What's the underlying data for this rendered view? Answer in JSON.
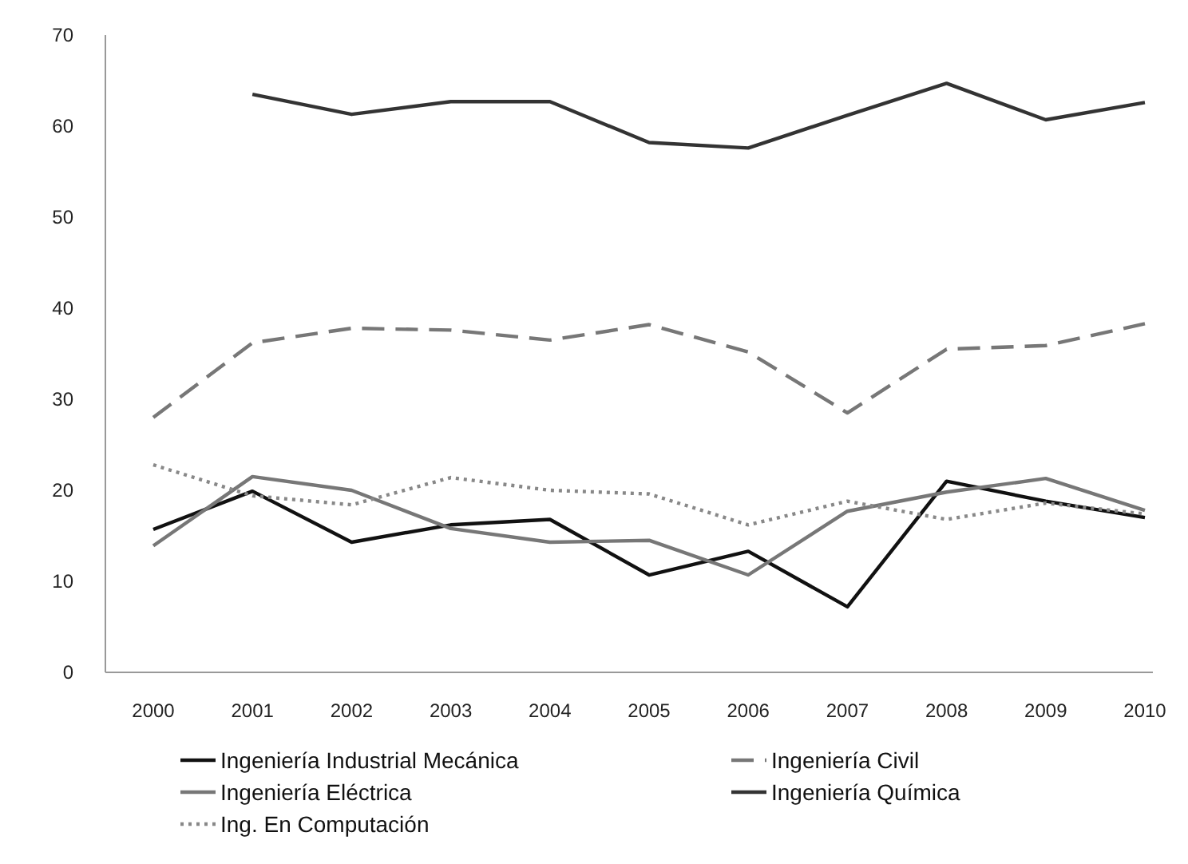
{
  "chart_data": {
    "type": "line",
    "categories": [
      "2000",
      "2001",
      "2002",
      "2003",
      "2004",
      "2005",
      "2006",
      "2007",
      "2008",
      "2009",
      "2010"
    ],
    "ylim": [
      0,
      70
    ],
    "yticks": [
      0,
      10,
      20,
      30,
      40,
      50,
      60,
      70
    ],
    "grid": false,
    "legend": "bottom",
    "series": [
      {
        "name": "Ingeniería Industrial Mecánica",
        "color": "#111111",
        "line_style": "solid",
        "values": [
          15.7,
          19.9,
          14.3,
          16.2,
          16.8,
          10.7,
          13.3,
          7.2,
          21,
          18.8,
          17
        ]
      },
      {
        "name": "Ingeniería Civil",
        "color": "#777777",
        "line_style": "dashed",
        "values": [
          28,
          36.2,
          37.8,
          37.6,
          36.5,
          38.2,
          35.2,
          28.5,
          35.5,
          35.9,
          38.3
        ]
      },
      {
        "name": "Ingeniería Eléctrica",
        "color": "#777777",
        "line_style": "solid",
        "values": [
          13.9,
          21.5,
          20,
          15.8,
          14.3,
          14.5,
          10.7,
          17.7,
          19.8,
          21.3,
          17.8
        ]
      },
      {
        "name": "Ingeniería Química",
        "color": "#333333",
        "line_style": "solid",
        "values": [
          null,
          63.5,
          61.3,
          62.7,
          62.7,
          58.2,
          57.6,
          61.2,
          64.7,
          60.7,
          62.6
        ]
      },
      {
        "name": "Ing. En Computación",
        "color": "#888888",
        "line_style": "dotted",
        "values": [
          22.8,
          19.4,
          18.4,
          21.4,
          20,
          19.6,
          16.2,
          18.8,
          16.8,
          18.6,
          17.4
        ]
      }
    ]
  }
}
